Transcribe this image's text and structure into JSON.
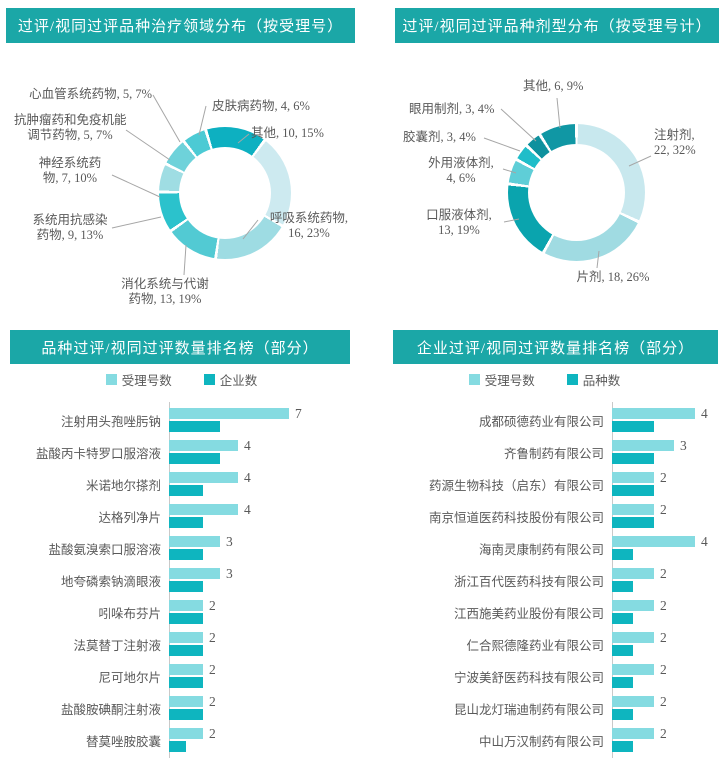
{
  "page": {
    "background": "#FFFFFF",
    "header_bg": "#1BA7A7",
    "header_text_color": "#FFFFFF",
    "label_color": "#595959",
    "leader_line_color": "#A6A6A6",
    "axis_line_color": "#C9C9C9"
  },
  "chart_data": [
    {
      "type": "pie",
      "variant": "donut",
      "position": "top-left",
      "title": "过评/视同过评品种治疗领域分布（按受理号）",
      "start_angle_deg": -17,
      "total": 69,
      "slices": [
        {
          "label": "其他",
          "value": 10,
          "pct": 15,
          "color": "#0DB0C1",
          "label_lines": [
            "其他, 10, 15%"
          ]
        },
        {
          "label": "呼吸系统药物",
          "value": 16,
          "pct": 23,
          "color": "#CDEAF0",
          "label_lines": [
            "呼吸系统药物,",
            "16, 23%"
          ]
        },
        {
          "label": "消化系统与代谢药物",
          "value": 13,
          "pct": 19,
          "color": "#9EDCE3",
          "label_lines": [
            "消化系统与代谢",
            "药物, 13, 19%"
          ]
        },
        {
          "label": "系统用抗感染药物",
          "value": 9,
          "pct": 13,
          "color": "#52CAD3",
          "label_lines": [
            "系统用抗感染",
            "药物, 9, 13%"
          ]
        },
        {
          "label": "神经系统药物",
          "value": 7,
          "pct": 10,
          "color": "#2BC2CC",
          "label_lines": [
            "神经系统药",
            "物, 7, 10%"
          ]
        },
        {
          "label": "抗肿瘤药和免疫机能调节药物",
          "value": 5,
          "pct": 7,
          "color": "#9FDDE3",
          "label_lines": [
            "抗肿瘤药和免疫机能",
            "调节药物, 5, 7%"
          ]
        },
        {
          "label": "心血管系统药物",
          "value": 5,
          "pct": 7,
          "color": "#6ED2DA",
          "label_lines": [
            "心血管系统药物, 5, 7%"
          ]
        },
        {
          "label": "皮肤病药物",
          "value": 4,
          "pct": 6,
          "color": "#4CCAD4",
          "label_lines": [
            "皮肤病药物, 4, 6%"
          ]
        }
      ]
    },
    {
      "type": "pie",
      "variant": "donut",
      "position": "top-right",
      "title": "过评/视同过评品种剂型分布（按受理号计）",
      "start_angle_deg": 0,
      "total": 69,
      "slices": [
        {
          "label": "注射剂",
          "value": 22,
          "pct": 32,
          "color": "#C8E8EE",
          "label_lines": [
            "注射剂,",
            "22, 32%"
          ]
        },
        {
          "label": "片剂",
          "value": 18,
          "pct": 26,
          "color": "#A0DBE2",
          "label_lines": [
            "片剂, 18, 26%"
          ]
        },
        {
          "label": "口服液体剂",
          "value": 13,
          "pct": 19,
          "color": "#0AA4AE",
          "label_lines": [
            "口服液体剂,",
            "13, 19%"
          ]
        },
        {
          "label": "外用液体剂",
          "value": 4,
          "pct": 6,
          "color": "#5FCED7",
          "label_lines": [
            "外用液体剂,",
            "4, 6%"
          ]
        },
        {
          "label": "胶囊剂",
          "value": 3,
          "pct": 4,
          "color": "#1FBDC9",
          "label_lines": [
            "胶囊剂, 3, 4%"
          ]
        },
        {
          "label": "眼用制剂",
          "value": 3,
          "pct": 4,
          "color": "#0E919E",
          "label_lines": [
            "眼用制剂, 3, 4%"
          ]
        },
        {
          "label": "其他",
          "value": 6,
          "pct": 9,
          "color": "#1097A4",
          "label_lines": [
            "其他, 6, 9%"
          ]
        }
      ]
    },
    {
      "type": "bar",
      "orientation": "horizontal",
      "position": "bottom-left",
      "title": "品种过评/视同过评数量排名榜（部分）",
      "legend_position": "top",
      "xlim": [
        0,
        7.5
      ],
      "categories": [
        "注射用头孢唑肟钠",
        "盐酸丙卡特罗口服溶液",
        "米诺地尔搽剂",
        "达格列净片",
        "盐酸氨溴索口服溶液",
        "地夸磷索钠滴眼液",
        "吲哚布芬片",
        "法莫替丁注射液",
        "尼可地尔片",
        "盐酸胺碘酮注射液",
        "替莫唑胺胶囊"
      ],
      "series": [
        {
          "name": "受理号数",
          "color": "#85DBE1",
          "values": [
            7,
            4,
            4,
            4,
            3,
            3,
            2,
            2,
            2,
            2,
            2
          ],
          "show_value_labels": true
        },
        {
          "name": "企业数",
          "color": "#0EB5BF",
          "values": [
            3,
            3,
            2,
            2,
            2,
            2,
            2,
            2,
            2,
            2,
            1
          ],
          "show_value_labels": false
        }
      ]
    },
    {
      "type": "bar",
      "orientation": "horizontal",
      "position": "bottom-right",
      "title": "企业过评/视同过评数量排名榜（部分）",
      "legend_position": "top",
      "xlim": [
        0,
        4.8
      ],
      "categories": [
        "成都硕德药业有限公司",
        "齐鲁制药有限公司",
        "药源生物科技（启东）有限公司",
        "南京恒道医药科技股份有限公司",
        "海南灵康制药有限公司",
        "浙江百代医药科技有限公司",
        "江西施美药业股份有限公司",
        "仁合熙德隆药业有限公司",
        "宁波美舒医药科技有限公司",
        "昆山龙灯瑞迪制药有限公司",
        "中山万汉制药有限公司"
      ],
      "series": [
        {
          "name": "受理号数",
          "color": "#85DBE1",
          "values": [
            4,
            3,
            2,
            2,
            4,
            2,
            2,
            2,
            2,
            2,
            2
          ],
          "show_value_labels": true
        },
        {
          "name": "品种数",
          "color": "#0EB5BF",
          "values": [
            2,
            2,
            2,
            2,
            1,
            1,
            1,
            1,
            1,
            1,
            1
          ],
          "show_value_labels": false
        }
      ]
    }
  ]
}
